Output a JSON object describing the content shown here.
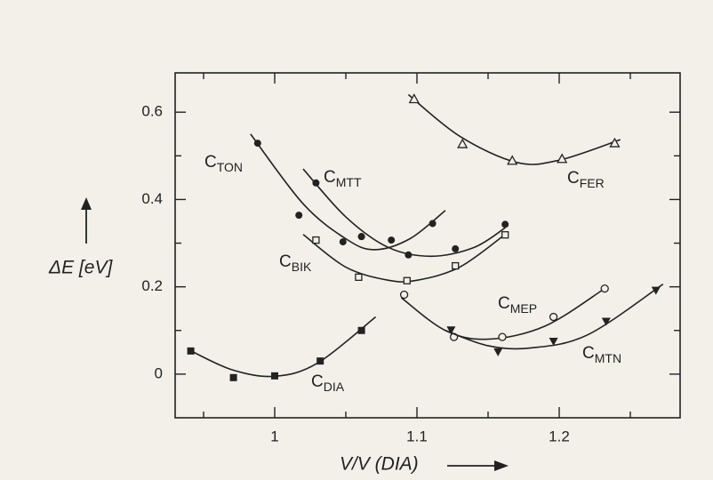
{
  "chart_data": {
    "type": "scatter",
    "xlabel": "V/V (DIA)",
    "ylabel": "ΔE [eV]",
    "xlim": [
      0.93,
      1.285
    ],
    "ylim": [
      -0.1,
      0.69
    ],
    "xticks": [
      1,
      1.1,
      1.2
    ],
    "yticks": [
      0,
      0.2,
      0.4,
      0.6
    ],
    "xticks_minor": [
      0.95,
      1.05,
      1.15,
      1.25
    ],
    "yticks_minor": [
      0.1,
      0.3,
      0.5
    ],
    "color": "#222222",
    "series": [
      {
        "label": [
          "C",
          "TON"
        ],
        "marker": "filled-circle",
        "x": [
          0.988,
          1.017,
          1.048,
          1.061,
          1.082,
          1.111
        ],
        "values": [
          0.529,
          0.364,
          0.303,
          0.315,
          0.307,
          0.345
        ],
        "curve": {
          "x": [
            0.983,
            1.02,
            1.05,
            1.07,
            1.095,
            1.12
          ],
          "values": [
            0.55,
            0.39,
            0.31,
            0.285,
            0.31,
            0.375
          ]
        }
      },
      {
        "label": [
          "C",
          "MTT"
        ],
        "marker": "filled-circle",
        "x": [
          1.029,
          1.061,
          1.094,
          1.127,
          1.162
        ],
        "values": [
          0.438,
          0.315,
          0.273,
          0.287,
          0.343
        ],
        "curve": {
          "x": [
            1.02,
            1.05,
            1.08,
            1.11,
            1.14,
            1.162
          ],
          "values": [
            0.47,
            0.36,
            0.29,
            0.27,
            0.29,
            0.335
          ]
        }
      },
      {
        "label": [
          "C",
          "BIK"
        ],
        "marker": "open-square",
        "x": [
          1.029,
          1.059,
          1.093,
          1.127,
          1.162
        ],
        "values": [
          0.307,
          0.222,
          0.214,
          0.248,
          0.319
        ],
        "curve": {
          "x": [
            1.02,
            1.05,
            1.08,
            1.1,
            1.13,
            1.162
          ],
          "values": [
            0.32,
            0.245,
            0.215,
            0.215,
            0.245,
            0.32
          ]
        }
      },
      {
        "label": [
          "C",
          "FER"
        ],
        "marker": "open-triangle",
        "x": [
          1.098,
          1.132,
          1.167,
          1.202,
          1.239
        ],
        "values": [
          0.63,
          0.527,
          0.489,
          0.493,
          0.529
        ],
        "curve": {
          "x": [
            1.094,
            1.13,
            1.17,
            1.2,
            1.243
          ],
          "values": [
            0.64,
            0.545,
            0.485,
            0.49,
            0.537
          ]
        }
      },
      {
        "label": [
          "C",
          "MEP"
        ],
        "marker": "open-circle",
        "x": [
          1.091,
          1.126,
          1.16,
          1.196,
          1.232
        ],
        "values": [
          0.182,
          0.085,
          0.085,
          0.131,
          0.196
        ],
        "curve": {
          "x": [
            1.089,
            1.12,
            1.15,
            1.19,
            1.232
          ],
          "values": [
            0.175,
            0.1,
            0.08,
            0.11,
            0.196
          ]
        }
      },
      {
        "label": [
          "C",
          "MTN"
        ],
        "marker": "filled-triangle-down",
        "x": [
          1.124,
          1.157,
          1.196,
          1.233,
          1.268
        ],
        "values": [
          0.101,
          0.051,
          0.075,
          0.121,
          0.192
        ],
        "curve": {
          "x": [
            1.12,
            1.15,
            1.18,
            1.22,
            1.273
          ],
          "values": [
            0.1,
            0.065,
            0.06,
            0.09,
            0.206
          ]
        }
      },
      {
        "label": [
          "C",
          "DIA"
        ],
        "marker": "filled-square",
        "x": [
          0.941,
          0.971,
          1.0,
          1.032,
          1.061
        ],
        "values": [
          0.053,
          -0.008,
          -0.004,
          0.03,
          0.1
        ],
        "curve": {
          "x": [
            0.94,
            0.97,
            1.0,
            1.03,
            1.071
          ],
          "values": [
            0.055,
            0.01,
            -0.005,
            0.025,
            0.131
          ]
        }
      }
    ]
  }
}
